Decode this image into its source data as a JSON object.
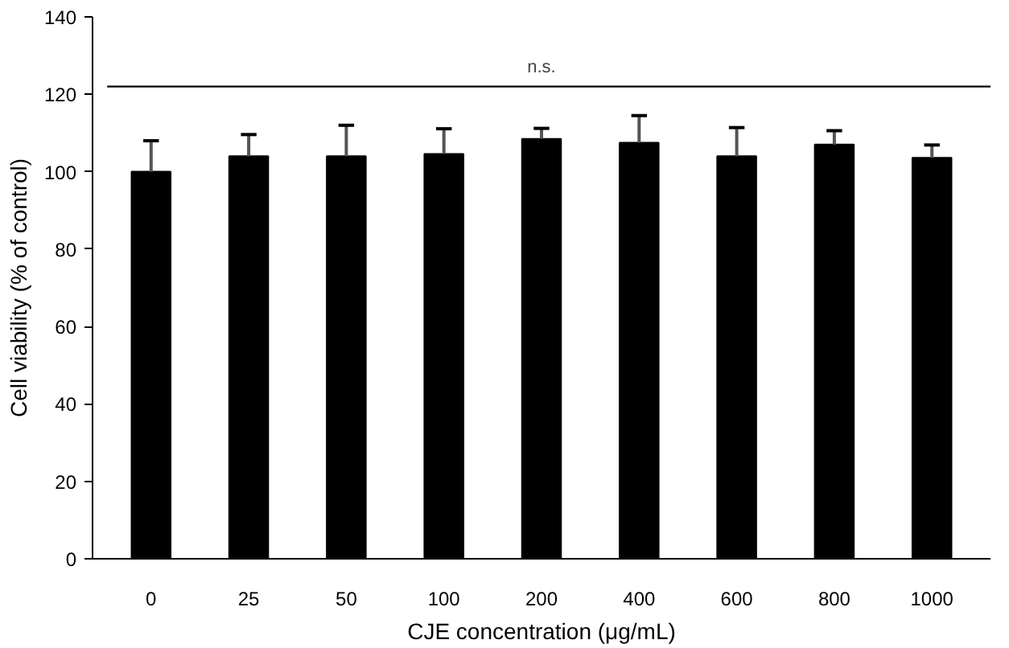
{
  "chart_data": {
    "type": "bar",
    "xlabel": "CJE concentration (μg/mL)",
    "ylabel": "Cell viability (% of control)",
    "categories": [
      "0",
      "25",
      "50",
      "100",
      "200",
      "400",
      "600",
      "800",
      "1000"
    ],
    "values": [
      100,
      104,
      104,
      104.6,
      108.5,
      107.5,
      104,
      107,
      103.6
    ],
    "color": "#000000",
    "errors": [
      [
        100,
        108
      ],
      [
        104,
        109.6
      ],
      [
        104,
        112
      ],
      [
        104.6,
        111.1
      ],
      [
        108.5,
        111.2
      ],
      [
        107.5,
        114.5
      ],
      [
        104,
        111.4
      ],
      [
        107,
        110.6
      ],
      [
        103.6,
        106.9
      ]
    ],
    "ylim": [
      0,
      140
    ],
    "yticks": [
      0,
      20,
      40,
      60,
      80,
      100,
      120,
      140
    ],
    "ref_lines": [
      {
        "axis": "y",
        "value": 122,
        "label": "n.s.",
        "color": "#000000"
      }
    ],
    "grid": false
  }
}
